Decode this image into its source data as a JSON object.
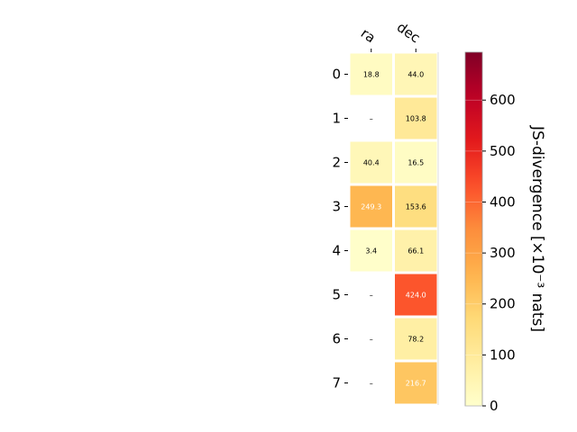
{
  "chart_data": {
    "type": "heatmap",
    "columns": [
      "ra",
      "dec"
    ],
    "rows": [
      "0",
      "1",
      "2",
      "3",
      "4",
      "5",
      "6",
      "7"
    ],
    "values": [
      [
        18.8,
        44.0
      ],
      [
        null,
        103.8
      ],
      [
        40.4,
        16.5
      ],
      [
        249.3,
        153.6
      ],
      [
        3.4,
        66.1
      ],
      [
        null,
        424.0
      ],
      [
        null,
        78.2
      ],
      [
        null,
        216.7
      ]
    ],
    "missing_label": "–",
    "colorbar": {
      "label": "JS-divergence [×10⁻³ nats]",
      "min": 0,
      "max": 694,
      "ticks": [
        0,
        100,
        200,
        300,
        400,
        500,
        600
      ],
      "colormap": "YlOrRd"
    }
  }
}
